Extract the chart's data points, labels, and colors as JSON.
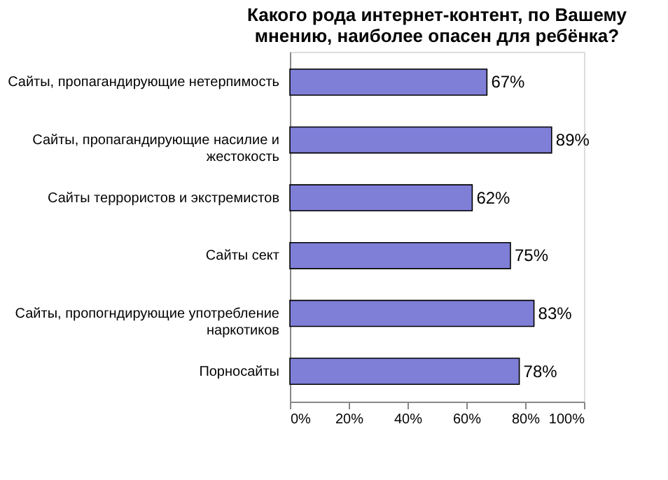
{
  "chart_data": {
    "type": "bar",
    "orientation": "horizontal",
    "title": "Какого рода интернет-контент, по Вашему мнению, наиболее опасен для ребёнка?",
    "categories": [
      "Сайты, пропагандирующие нетерпимость",
      "Сайты, пропагандирующие насилие и жестокость",
      "Сайты террористов и экстремистов",
      "Сайты сект",
      "Сайты, пропогндирующие употребление наркотиков",
      "Порносайты"
    ],
    "values": [
      67,
      89,
      62,
      75,
      83,
      78
    ],
    "value_labels": [
      "67%",
      "89%",
      "62%",
      "75%",
      "83%",
      "78%"
    ],
    "color": "#7f7fd8",
    "xlim": [
      0,
      100
    ],
    "xticks": [
      {
        "value": 0,
        "label": "0%"
      },
      {
        "value": 20,
        "label": "20%"
      },
      {
        "value": 40,
        "label": "40%"
      },
      {
        "value": 60,
        "label": "60%"
      },
      {
        "value": 80,
        "label": "80%"
      },
      {
        "value": 100,
        "label": "100%"
      }
    ],
    "grid": false
  }
}
